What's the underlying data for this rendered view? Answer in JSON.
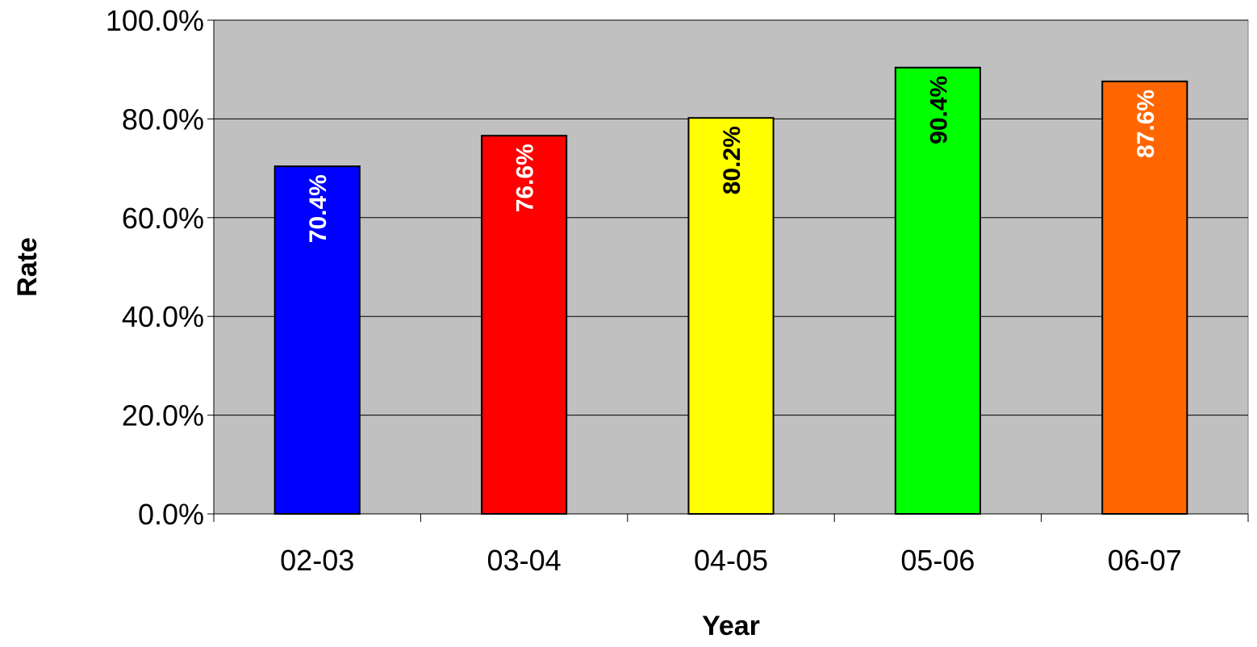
{
  "chart_data": {
    "type": "bar",
    "title": "",
    "xlabel": "Year",
    "ylabel": "Rate",
    "categories": [
      "02-03",
      "03-04",
      "04-05",
      "05-06",
      "06-07"
    ],
    "values": [
      70.4,
      76.6,
      80.2,
      90.4,
      87.6
    ],
    "data_labels": [
      "70.4%",
      "76.6%",
      "80.2%",
      "90.4%",
      "87.6%"
    ],
    "bar_colors": [
      "#0000ff",
      "#ff0000",
      "#ffff00",
      "#00ff00",
      "#ff6600"
    ],
    "label_colors": [
      "#ffffff",
      "#ffffff",
      "#000000",
      "#000000",
      "#ffffff"
    ],
    "ylim": [
      0,
      100
    ],
    "yticks": [
      0,
      20,
      40,
      60,
      80,
      100
    ],
    "ytick_labels": [
      "0.0%",
      "20.0%",
      "40.0%",
      "60.0%",
      "80.0%",
      "100.0%"
    ],
    "grid": true,
    "legend": "none",
    "plot_background": "#c0c0c0"
  }
}
